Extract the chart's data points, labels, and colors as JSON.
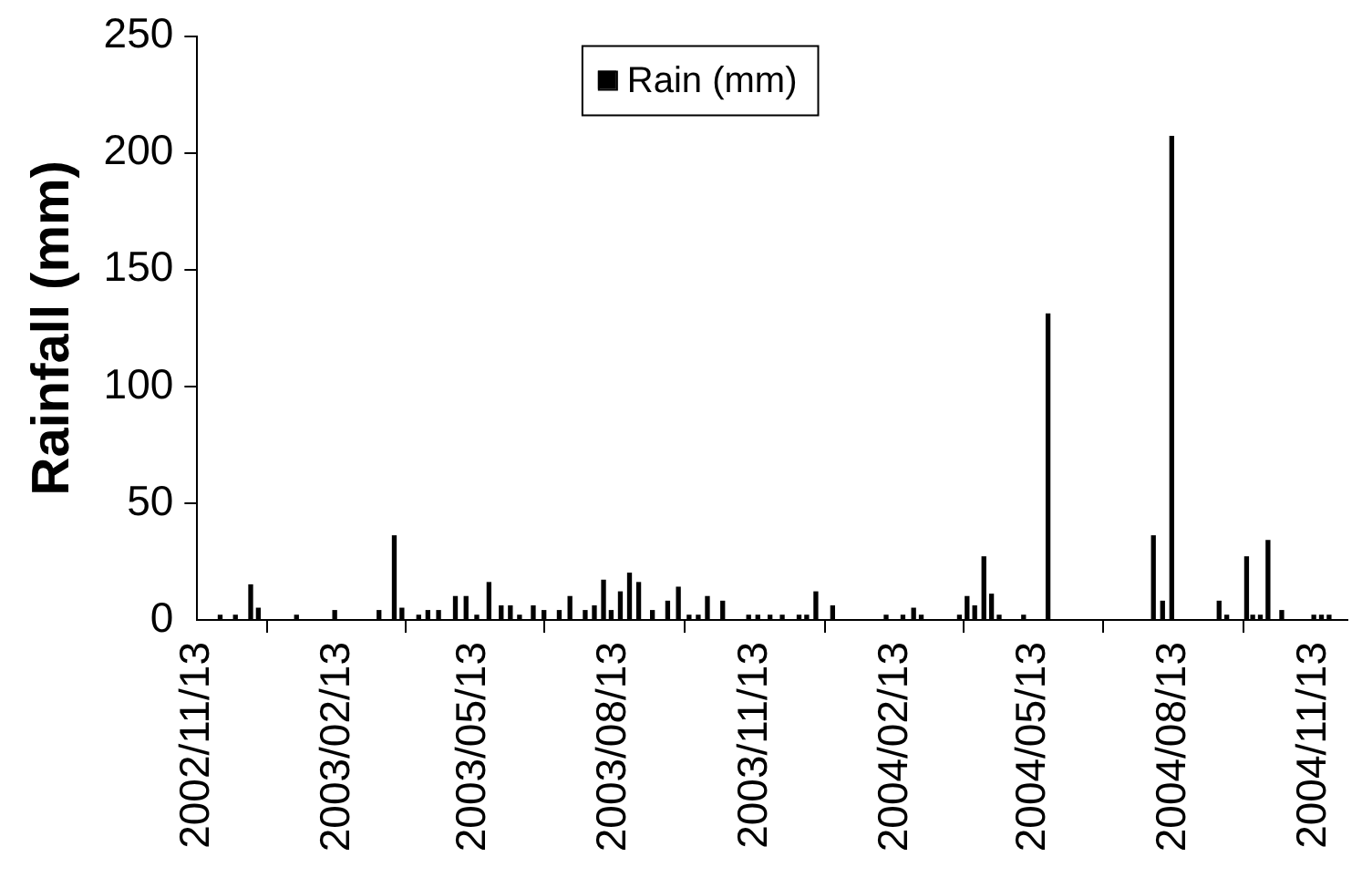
{
  "chart_data": {
    "type": "bar",
    "ylabel": "Rainfall (mm)",
    "legend": "top",
    "grid": false,
    "ylim": [
      0,
      250
    ],
    "yticks": [
      0,
      50,
      100,
      150,
      200,
      250
    ],
    "xlim": [
      "2002-11-13",
      "2004-12-05"
    ],
    "xticks": [
      {
        "value": "2002-11-13",
        "label": "2002/11/13"
      },
      {
        "value": "2003-02-13",
        "label": "2003/02/13"
      },
      {
        "value": "2003-05-13",
        "label": "2003/05/13"
      },
      {
        "value": "2003-08-13",
        "label": "2003/08/13"
      },
      {
        "value": "2003-11-13",
        "label": "2003/11/13"
      },
      {
        "value": "2004-02-13",
        "label": "2004/02/13"
      },
      {
        "value": "2004-05-13",
        "label": "2004/05/13"
      },
      {
        "value": "2004-08-13",
        "label": "2004/08/13"
      },
      {
        "value": "2004-11-13",
        "label": "2004/11/13"
      }
    ],
    "x": [
      "2002-11-28",
      "2002-12-08",
      "2002-12-18",
      "2002-12-23",
      "2003-01-17",
      "2003-02-11",
      "2003-03-12",
      "2003-03-22",
      "2003-03-27",
      "2003-04-07",
      "2003-04-13",
      "2003-04-20",
      "2003-05-01",
      "2003-05-08",
      "2003-05-15",
      "2003-05-23",
      "2003-05-31",
      "2003-06-06",
      "2003-06-12",
      "2003-06-21",
      "2003-06-28",
      "2003-07-08",
      "2003-07-15",
      "2003-07-25",
      "2003-07-31",
      "2003-08-06",
      "2003-08-11",
      "2003-08-17",
      "2003-08-23",
      "2003-08-29",
      "2003-09-07",
      "2003-09-17",
      "2003-09-24",
      "2003-10-01",
      "2003-10-07",
      "2003-10-13",
      "2003-10-23",
      "2003-11-09",
      "2003-11-15",
      "2003-11-23",
      "2003-12-01",
      "2003-12-12",
      "2003-12-17",
      "2003-12-23",
      "2004-01-03",
      "2004-02-07",
      "2004-02-18",
      "2004-02-25",
      "2004-03-01",
      "2004-03-26",
      "2004-03-31",
      "2004-04-05",
      "2004-04-11",
      "2004-04-16",
      "2004-04-21",
      "2004-05-07",
      "2004-05-23",
      "2004-07-31",
      "2004-08-06",
      "2004-08-12",
      "2004-09-12",
      "2004-09-17",
      "2004-09-30",
      "2004-10-04",
      "2004-10-09",
      "2004-10-14",
      "2004-10-23",
      "2004-11-13",
      "2004-11-18",
      "2004-11-23"
    ],
    "series": [
      {
        "name": "Rain (mm)",
        "color": "#000000",
        "values": [
          2,
          2,
          15,
          5,
          2,
          4,
          4,
          36,
          5,
          2,
          4,
          4,
          10,
          10,
          2,
          16,
          6,
          6,
          2,
          6,
          4,
          4,
          10,
          4,
          6,
          17,
          4,
          12,
          20,
          16,
          4,
          8,
          14,
          2,
          2,
          10,
          8,
          2,
          2,
          2,
          2,
          2,
          2,
          12,
          6,
          2,
          2,
          5,
          2,
          2,
          10,
          6,
          27,
          11,
          2,
          2,
          131,
          36,
          8,
          207,
          8,
          2,
          27,
          2,
          2,
          34,
          4,
          2,
          2,
          2
        ]
      }
    ]
  }
}
